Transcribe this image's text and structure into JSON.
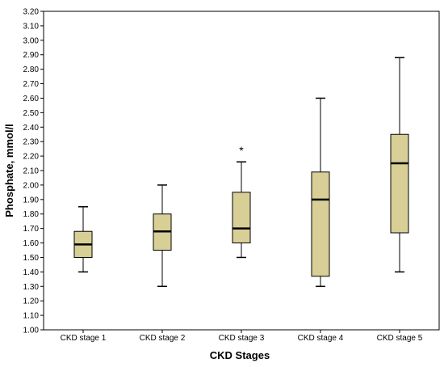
{
  "chart_data": {
    "type": "box",
    "xlabel": "CKD Stages",
    "ylabel": "Phosphate, mmol/l",
    "ylim": [
      1.0,
      3.2
    ],
    "ytick_step": 0.1,
    "grid": false,
    "box_color": "#d8cf96",
    "categories": [
      "CKD stage 1",
      "CKD stage 2",
      "CKD stage 3",
      "CKD stage 4",
      "CKD stage 5"
    ],
    "boxes": [
      {
        "category": "CKD stage 1",
        "whisker_low": 1.4,
        "q1": 1.5,
        "median": 1.59,
        "q3": 1.68,
        "whisker_high": 1.85,
        "outliers": []
      },
      {
        "category": "CKD stage 2",
        "whisker_low": 1.3,
        "q1": 1.55,
        "median": 1.68,
        "q3": 1.8,
        "whisker_high": 2.0,
        "outliers": []
      },
      {
        "category": "CKD stage 3",
        "whisker_low": 1.5,
        "q1": 1.6,
        "median": 1.7,
        "q3": 1.95,
        "whisker_high": 2.16,
        "outliers": [
          2.25
        ]
      },
      {
        "category": "CKD stage 4",
        "whisker_low": 1.3,
        "q1": 1.37,
        "median": 1.9,
        "q3": 2.09,
        "whisker_high": 2.6,
        "outliers": []
      },
      {
        "category": "CKD stage 5",
        "whisker_low": 1.4,
        "q1": 1.67,
        "median": 2.15,
        "q3": 2.35,
        "whisker_high": 2.88,
        "outliers": []
      }
    ],
    "outlier_marker": "*"
  }
}
